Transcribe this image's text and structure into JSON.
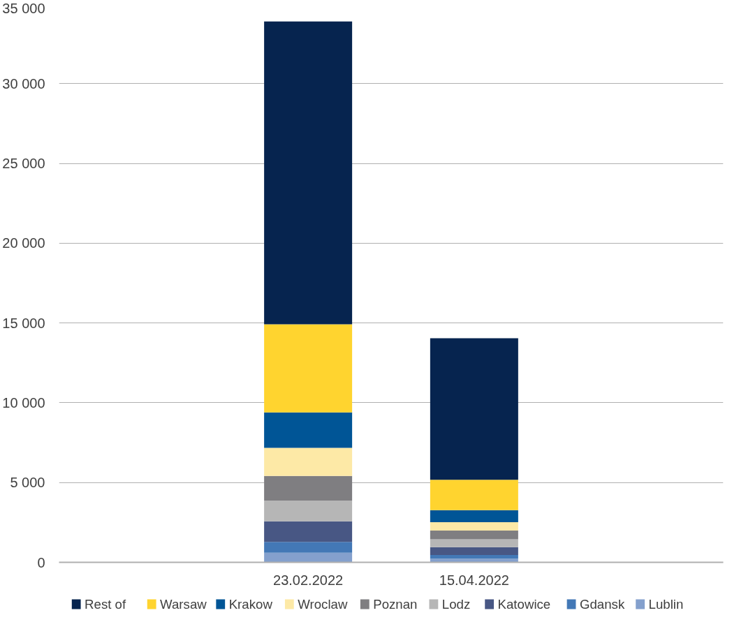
{
  "chart_data": {
    "type": "bar",
    "stacked": true,
    "categories": [
      null,
      "23.02.2022",
      "15.04.2022",
      null
    ],
    "series": [
      {
        "name": "Lublin",
        "color": "#84a0cd",
        "values": [
          null,
          600,
          230,
          null
        ]
      },
      {
        "name": "Gdansk",
        "color": "#4378b6",
        "values": [
          null,
          680,
          230,
          null
        ]
      },
      {
        "name": "Katowice",
        "color": "#485784",
        "values": [
          null,
          1290,
          490,
          null
        ]
      },
      {
        "name": "Lodz",
        "color": "#b6b6b6",
        "values": [
          null,
          1300,
          490,
          null
        ]
      },
      {
        "name": "Poznan",
        "color": "#7f7e81",
        "values": [
          null,
          1540,
          550,
          null
        ]
      },
      {
        "name": "Wroclaw",
        "color": "#fde9a6",
        "values": [
          null,
          1760,
          530,
          null
        ]
      },
      {
        "name": "Krakow",
        "color": "#005596",
        "values": [
          null,
          2220,
          750,
          null
        ]
      },
      {
        "name": "Warsaw",
        "color": "#ffd42f",
        "values": [
          null,
          5530,
          1900,
          null
        ]
      },
      {
        "name": "Rest of",
        "color": "#06244f",
        "values": [
          null,
          18980,
          8870,
          null
        ]
      }
    ],
    "ylim": [
      0,
      35000
    ],
    "yticks": [
      {
        "value": 0,
        "label": "0"
      },
      {
        "value": 5000,
        "label": "5 000"
      },
      {
        "value": 10000,
        "label": "10 000"
      },
      {
        "value": 15000,
        "label": "15 000"
      },
      {
        "value": 20000,
        "label": "20 000"
      },
      {
        "value": 25000,
        "label": "25 000"
      },
      {
        "value": 30000,
        "label": "30 000"
      },
      {
        "value": 35000,
        "label": "35 000"
      }
    ],
    "grid": "y",
    "legend": "bottom"
  }
}
